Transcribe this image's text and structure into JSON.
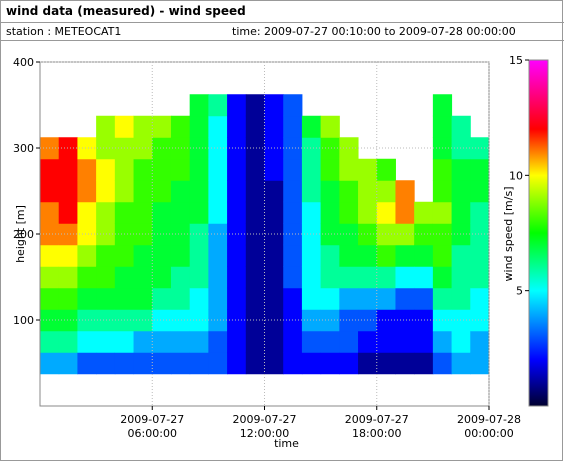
{
  "header": {
    "title": "wind data (measured) - wind speed",
    "station": "station : METEOCAT1",
    "time": "time: 2009-07-27 00:10:00 to 2009-07-28 00:00:00"
  },
  "chart_data": {
    "type": "heatmap",
    "x_label": "time",
    "y_label": "height [m]",
    "colorbar_label": "wind speed [m/s]",
    "x": [
      0.5,
      1.5,
      2.5,
      3.5,
      4.5,
      5.5,
      6.5,
      7.5,
      8.5,
      9.5,
      10.5,
      11.5,
      12.5,
      13.5,
      14.5,
      15.5,
      16.5,
      17.5,
      18.5,
      19.5,
      20.5,
      21.5,
      22.5,
      23.5
    ],
    "y": [
      50,
      75,
      100,
      125,
      150,
      175,
      200,
      225,
      250,
      275,
      300,
      325,
      350
    ],
    "values": [
      [
        4,
        6,
        7,
        8,
        9,
        10,
        11,
        11,
        12,
        12,
        11,
        null,
        null
      ],
      [
        4,
        6,
        7,
        8,
        9,
        10,
        11,
        12,
        12,
        12,
        12,
        null,
        null
      ],
      [
        3,
        5,
        6,
        7,
        8,
        9,
        10,
        10,
        11,
        11,
        10,
        null,
        null
      ],
      [
        3,
        5,
        6,
        7,
        8,
        8,
        9,
        9,
        10,
        10,
        9,
        9,
        null
      ],
      [
        3,
        5,
        6,
        7,
        7,
        8,
        8,
        8,
        9,
        9,
        9,
        10,
        null
      ],
      [
        3,
        4,
        6,
        7,
        7,
        7,
        8,
        8,
        8,
        8,
        9,
        9,
        null
      ],
      [
        3,
        4,
        5,
        6,
        7,
        7,
        7,
        7,
        8,
        8,
        8,
        9,
        null
      ],
      [
        3,
        4,
        5,
        6,
        6,
        7,
        7,
        7,
        7,
        8,
        8,
        8,
        null
      ],
      [
        3,
        4,
        5,
        5,
        6,
        6,
        6,
        7,
        7,
        7,
        7,
        7,
        7
      ],
      [
        3,
        3,
        4,
        4,
        4,
        4,
        4,
        5,
        5,
        5,
        5,
        5,
        6
      ],
      [
        2,
        2,
        2,
        2,
        2,
        2,
        2,
        2,
        2,
        2,
        2,
        2,
        2
      ],
      [
        1,
        1,
        1,
        1,
        1,
        1,
        1,
        1,
        1,
        1,
        1,
        1,
        1
      ],
      [
        1,
        1,
        1,
        1,
        1,
        1,
        1,
        1,
        1,
        2,
        2,
        2,
        2
      ],
      [
        2,
        2,
        2,
        2,
        3,
        3,
        3,
        3,
        3,
        3,
        3,
        3,
        3
      ],
      [
        2,
        3,
        4,
        5,
        5,
        5,
        5,
        5,
        6,
        6,
        6,
        7,
        null
      ],
      [
        2,
        3,
        4,
        5,
        6,
        6,
        7,
        7,
        7,
        8,
        8,
        9,
        null
      ],
      [
        2,
        3,
        3,
        4,
        6,
        7,
        7,
        8,
        8,
        9,
        9,
        null,
        null
      ],
      [
        1,
        2,
        3,
        4,
        6,
        7,
        8,
        9,
        9,
        9,
        null,
        null,
        null
      ],
      [
        1,
        2,
        2,
        4,
        6,
        8,
        9,
        10,
        9,
        8,
        null,
        null,
        null
      ],
      [
        1,
        2,
        2,
        3,
        5,
        7,
        9,
        11,
        11,
        null,
        null,
        null,
        null
      ],
      [
        1,
        2,
        2,
        3,
        5,
        7,
        8,
        9,
        null,
        null,
        null,
        null,
        null
      ],
      [
        3,
        4,
        5,
        6,
        7,
        8,
        8,
        9,
        8,
        8,
        7,
        7,
        7
      ],
      [
        4,
        5,
        5,
        6,
        6,
        6,
        7,
        7,
        7,
        7,
        6,
        6,
        null
      ],
      [
        4,
        4,
        5,
        5,
        6,
        6,
        6,
        6,
        7,
        7,
        6,
        null,
        null
      ]
    ],
    "xlim": [
      0,
      24
    ],
    "xticks": [
      {
        "value": 6,
        "label": "2009-07-27 06:00:00"
      },
      {
        "value": 12,
        "label": "2009-07-27 12:00:00"
      },
      {
        "value": 18,
        "label": "2009-07-27 18:00:00"
      },
      {
        "value": 24,
        "label": "2009-07-28 00:00:00"
      }
    ],
    "ylim": [
      0,
      400
    ],
    "yticks": [
      100,
      200,
      300,
      400
    ],
    "clim": [
      0,
      15
    ],
    "cticks": [
      5,
      10,
      15
    ],
    "colorscale": [
      [
        0,
        "#000030"
      ],
      [
        2,
        "#0000ff"
      ],
      [
        5,
        "#00ffff"
      ],
      [
        7.5,
        "#00ff00"
      ],
      [
        10,
        "#ffff00"
      ],
      [
        12,
        "#ff0000"
      ],
      [
        15,
        "#ff00ff"
      ]
    ],
    "grid": true
  }
}
